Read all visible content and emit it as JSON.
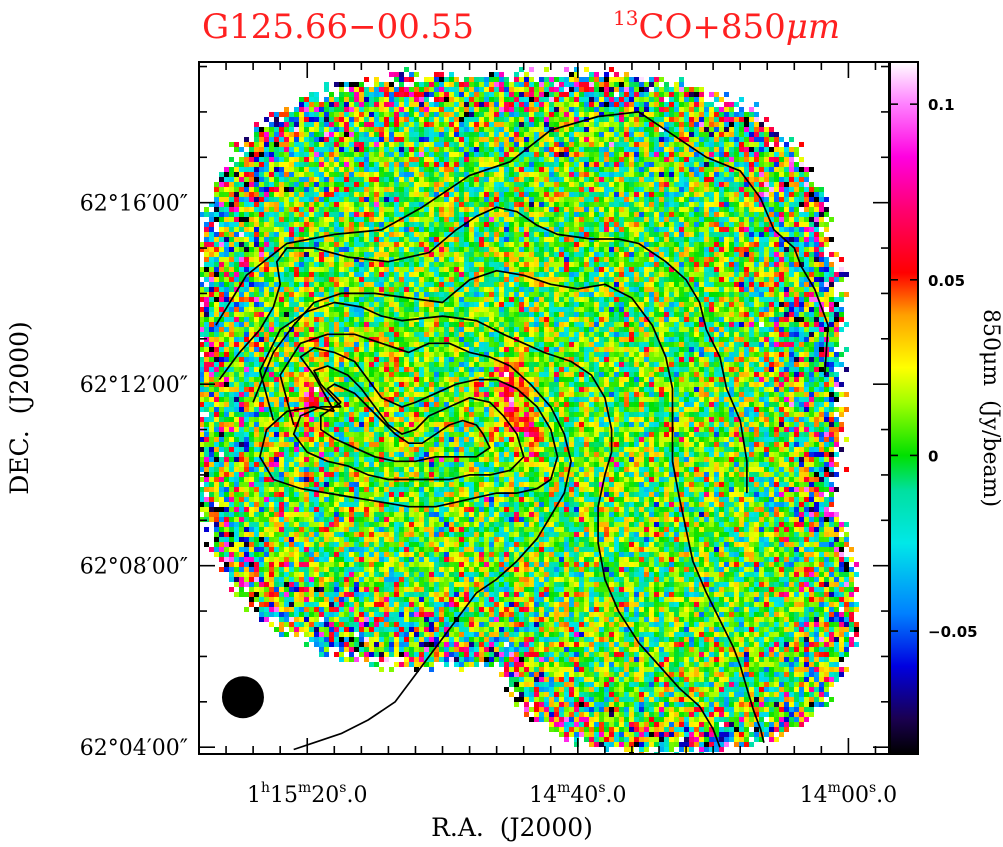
{
  "figure": {
    "source_name": "G125.66−00.55",
    "tracer_main": "CO+850",
    "tracer_sup": "13",
    "tracer_unit": "μm"
  },
  "chart_data": {
    "type": "heatmap",
    "subtype": "sky image with contour overlay",
    "title_left": "G125.66−00.55",
    "title_right": "13CO+850μm",
    "xlabel": "R.A.  (J2000)",
    "ylabel": "DEC.  (J2000)",
    "x_ticks": [
      {
        "h": "1",
        "hu": "h",
        "m": "15",
        "mu": "m",
        "s": "20",
        "su": "s",
        "frac": ".0"
      },
      {
        "h": "",
        "hu": "",
        "m": "14",
        "mu": "m",
        "s": "40",
        "su": "s",
        "frac": ".0"
      },
      {
        "h": "",
        "hu": "",
        "m": "14",
        "mu": "m",
        "s": "00",
        "su": "s",
        "frac": ".0"
      }
    ],
    "x_ticks_seconds": [
      4520,
      4480,
      4440
    ],
    "y_ticks": [
      "62°16′00″",
      "62°12′00″",
      "62°08′00″",
      "62°04′00″"
    ],
    "y_ticks_arcmin": [
      16,
      12,
      8,
      4
    ],
    "xlim_seconds": [
      4536,
      4434
    ],
    "ylim_arcmin": [
      3.85,
      19.1
    ],
    "grid": false,
    "legend": "none",
    "colorbar": {
      "label": "850μm  (Jy/beam)",
      "ticks": [
        "0.1",
        "0.05",
        "0",
        "−0.05"
      ],
      "tick_values": [
        0.1,
        0.05,
        0,
        -0.05
      ],
      "range": [
        -0.085,
        0.112
      ],
      "colormap_stops": [
        {
          "v": -0.085,
          "c": "#000000"
        },
        {
          "v": -0.075,
          "c": "#1a0050"
        },
        {
          "v": -0.06,
          "c": "#0000e0"
        },
        {
          "v": -0.045,
          "c": "#0080ff"
        },
        {
          "v": -0.025,
          "c": "#00e8e8"
        },
        {
          "v": -0.01,
          "c": "#00e0a0"
        },
        {
          "v": 0.0,
          "c": "#00e000"
        },
        {
          "v": 0.015,
          "c": "#a0ff00"
        },
        {
          "v": 0.025,
          "c": "#ffff00"
        },
        {
          "v": 0.04,
          "c": "#ffa000"
        },
        {
          "v": 0.052,
          "c": "#ff0000"
        },
        {
          "v": 0.07,
          "c": "#ff0070"
        },
        {
          "v": 0.085,
          "c": "#ff00e0"
        },
        {
          "v": 0.1,
          "c": "#ff80ff"
        },
        {
          "v": 0.112,
          "c": "#ffffff"
        }
      ]
    },
    "emission_peaks": [
      {
        "ra_s": 4490,
        "dec_arcmin": 11.9,
        "peak": 0.065,
        "sigma_s": 1.4,
        "sigma_arcmin": 0.55
      },
      {
        "ra_s": 4487,
        "dec_arcmin": 10.9,
        "peak": 0.05,
        "sigma_s": 1.2,
        "sigma_arcmin": 0.35
      },
      {
        "ra_s": 4519,
        "dec_arcmin": 11.8,
        "peak": 0.035,
        "sigma_s": 1.8,
        "sigma_arcmin": 0.9
      },
      {
        "ra_s": 4507,
        "dec_arcmin": 11.9,
        "peak": 0.02,
        "sigma_s": 2.0,
        "sigma_arcmin": 0.8
      },
      {
        "ra_s": 4488,
        "dec_arcmin": 7.5,
        "peak": 0.025,
        "sigma_s": 0.9,
        "sigma_arcmin": 0.4
      }
    ],
    "noise_rms": 0.022,
    "contours_13co": [
      {
        "level": 1,
        "ra_s": [
          4533.5,
          4529,
          4523,
          4516,
          4509,
          4503,
          4496,
          4490,
          4484,
          4477,
          4471,
          4466,
          4461,
          4456,
          4453,
          4451,
          4448,
          4447,
          4445,
          4443,
          4443.5
        ],
        "dec_arcmin": [
          13.3,
          14.4,
          15.1,
          15.3,
          15.4,
          15.9,
          16.6,
          16.9,
          17.6,
          17.9,
          18.0,
          17.5,
          17.0,
          16.7,
          16.1,
          15.4,
          15.0,
          14.6,
          14.1,
          13.3,
          12.2
        ]
      },
      {
        "level": 2,
        "ra_s": [
          4533,
          4530,
          4527,
          4525,
          4524,
          4524.5,
          4523,
          4519,
          4514,
          4508,
          4502,
          4498,
          4495,
          4492,
          4489,
          4486,
          4483,
          4478,
          4474,
          4471,
          4467,
          4464,
          4462,
          4461,
          4459,
          4458,
          4456,
          4455,
          4455
        ],
        "dec_arcmin": [
          12.1,
          12.7,
          13.2,
          13.7,
          14.2,
          14.7,
          15.0,
          15.0,
          14.8,
          14.7,
          14.9,
          15.4,
          15.7,
          15.9,
          15.8,
          15.5,
          15.3,
          15.2,
          15.2,
          15.1,
          14.7,
          14.3,
          13.8,
          13.2,
          12.6,
          11.9,
          11.2,
          10.3,
          9.6
        ]
      },
      {
        "level": 3,
        "ra_s": [
          4528,
          4525,
          4522,
          4519,
          4515,
          4510,
          4505,
          4500,
          4496,
          4492,
          4488,
          4484,
          4480,
          4476,
          4472,
          4469,
          4467,
          4466,
          4466,
          4466,
          4465,
          4464,
          4463,
          4461,
          4459,
          4457,
          4456,
          4455,
          4454,
          4453,
          4452.5
        ],
        "dec_arcmin": [
          11.6,
          12.7,
          13.3,
          13.8,
          14.0,
          14.0,
          13.9,
          13.8,
          14.3,
          14.5,
          14.4,
          14.2,
          14.1,
          14.2,
          13.9,
          13.3,
          12.6,
          11.9,
          11.1,
          10.3,
          9.5,
          8.8,
          8.1,
          7.4,
          6.8,
          6.2,
          5.8,
          5.3,
          4.8,
          4.4,
          4.1
        ]
      },
      {
        "level": 4,
        "ra_s": [
          4525,
          4527,
          4524,
          4520,
          4516,
          4512,
          4509,
          4506,
          4500,
          4495,
          4491,
          4488,
          4485,
          4481,
          4478,
          4476,
          4475,
          4475,
          4476,
          4477,
          4477,
          4476,
          4474,
          4471,
          4468,
          4465,
          4462,
          4460,
          4459
        ],
        "dec_arcmin": [
          11.2,
          12.3,
          13.2,
          13.6,
          13.8,
          13.7,
          13.5,
          13.4,
          13.5,
          13.4,
          13.1,
          12.9,
          12.7,
          12.5,
          12.2,
          11.7,
          11.0,
          10.5,
          10.0,
          9.3,
          8.5,
          7.7,
          7.0,
          6.3,
          5.8,
          5.3,
          4.9,
          4.4,
          4.0
        ]
      },
      {
        "level": 5,
        "ra_s": [
          4522,
          4524,
          4521,
          4517,
          4513,
          4509,
          4505,
          4502,
          4499,
          4496,
          4493,
          4490,
          4487,
          4484,
          4482,
          4481,
          4482,
          4484,
          4486,
          4489,
          4492,
          4495,
          4497,
          4499,
          4501,
          4504,
          4507,
          4511,
          4515,
          4519,
          4522
        ],
        "dec_arcmin": [
          11.1,
          12.2,
          12.9,
          13.1,
          13.1,
          12.9,
          12.7,
          12.9,
          12.9,
          12.7,
          12.6,
          12.4,
          12.0,
          11.5,
          10.9,
          10.3,
          9.6,
          9.1,
          8.6,
          8.1,
          7.7,
          7.4,
          7.0,
          6.6,
          6.2,
          5.6,
          5.0,
          4.6,
          4.3,
          4.1,
          3.95
        ]
      },
      {
        "level": 6,
        "ra_s": [
          4516,
          4519,
          4521,
          4519,
          4516,
          4513,
          4511,
          4509,
          4506,
          4504,
          4501,
          4498,
          4495,
          4492,
          4489,
          4486,
          4484,
          4483,
          4484,
          4486,
          4489,
          4492,
          4495,
          4498,
          4501,
          4505,
          4509,
          4513,
          4517,
          4521,
          4525,
          4527,
          4526,
          4523,
          4519,
          4516
        ],
        "dec_arcmin": [
          11.4,
          12.2,
          12.6,
          12.8,
          12.7,
          12.5,
          12.1,
          11.7,
          11.5,
          11.6,
          11.8,
          12.0,
          12.1,
          12.1,
          11.9,
          11.5,
          11.0,
          10.4,
          9.9,
          9.7,
          9.6,
          9.6,
          9.5,
          9.4,
          9.3,
          9.3,
          9.4,
          9.5,
          9.6,
          9.7,
          9.9,
          10.4,
          11.0,
          11.4,
          11.5,
          11.4
        ]
      },
      {
        "level": 7,
        "ra_s": [
          4515,
          4518,
          4519,
          4517,
          4514,
          4512,
          4510,
          4508,
          4506,
          4504,
          4502,
          4499,
          4496,
          4493,
          4491,
          4489,
          4488,
          4490,
          4493,
          4496,
          4499,
          4502,
          4505,
          4508,
          4511,
          4514,
          4517,
          4520,
          4522,
          4521,
          4518,
          4515
        ],
        "dec_arcmin": [
          11.5,
          12.0,
          12.3,
          12.4,
          12.2,
          11.9,
          11.5,
          11.1,
          10.9,
          11.0,
          11.3,
          11.5,
          11.7,
          11.6,
          11.3,
          10.9,
          10.4,
          10.1,
          10.0,
          10.0,
          9.9,
          9.9,
          9.9,
          9.9,
          10.0,
          10.2,
          10.3,
          10.5,
          10.9,
          11.3,
          11.5,
          11.5
        ]
      },
      {
        "level": 8,
        "ra_s": [
          4515,
          4517,
          4516,
          4513,
          4511,
          4509,
          4507,
          4505,
          4503,
          4501,
          4499,
          4497,
          4495,
          4494,
          4493,
          4495,
          4498,
          4501,
          4504,
          4507,
          4510,
          4513,
          4516,
          4518,
          4518,
          4516,
          4515
        ],
        "dec_arcmin": [
          11.6,
          11.9,
          12.0,
          11.8,
          11.5,
          11.2,
          10.9,
          10.7,
          10.7,
          10.9,
          11.1,
          11.2,
          11.1,
          10.9,
          10.6,
          10.4,
          10.4,
          10.4,
          10.3,
          10.3,
          10.4,
          10.6,
          10.8,
          11.0,
          11.3,
          11.5,
          11.6
        ]
      }
    ]
  }
}
